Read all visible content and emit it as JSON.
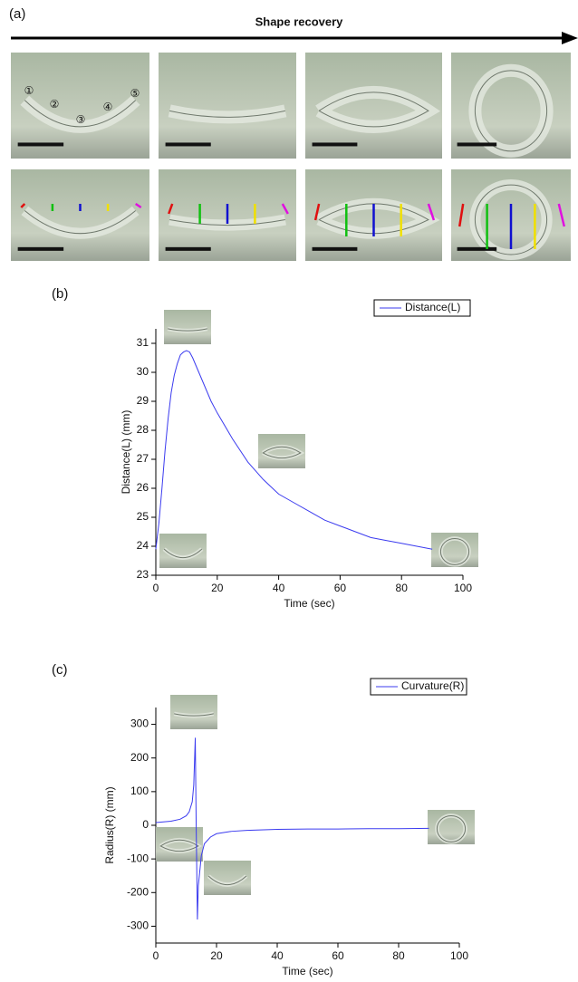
{
  "panel_a": {
    "label": "(a)",
    "arrow_label": "Shape recovery",
    "markers": [
      "①",
      "②",
      "③",
      "④",
      "⑤"
    ]
  },
  "chart_data": [
    {
      "type": "line",
      "label": "(b)",
      "xlabel": "Time (sec)",
      "ylabel": "Distance(L) (mm)",
      "x": [
        0,
        1,
        2,
        3,
        4,
        5,
        6,
        7,
        8,
        9,
        10,
        11,
        12,
        14,
        16,
        18,
        20,
        25,
        30,
        35,
        40,
        45,
        50,
        55,
        60,
        65,
        70,
        75,
        80,
        85,
        90
      ],
      "series": [
        {
          "name": "Distance(L)",
          "color": "#3b3bef",
          "values": [
            23.9,
            24.8,
            26.0,
            27.3,
            28.4,
            29.3,
            29.9,
            30.3,
            30.6,
            30.7,
            30.75,
            30.7,
            30.5,
            30.0,
            29.5,
            29.0,
            28.6,
            27.7,
            26.9,
            26.3,
            25.8,
            25.5,
            25.2,
            24.9,
            24.7,
            24.5,
            24.3,
            24.2,
            24.1,
            24.0,
            23.9
          ]
        }
      ],
      "xlim": [
        0,
        100
      ],
      "xticks": [
        0,
        20,
        40,
        60,
        80,
        100
      ],
      "ylim": [
        23,
        31.5
      ],
      "yticks": [
        23,
        24,
        25,
        26,
        27,
        28,
        29,
        30,
        31
      ],
      "legend": "top-right"
    },
    {
      "type": "line",
      "label": "(c)",
      "xlabel": "Time (sec)",
      "ylabel": "Radius(R) (mm)",
      "x": [
        0,
        5,
        8,
        10,
        11,
        12,
        12.5,
        13,
        13.3,
        13.7,
        14,
        15,
        16,
        18,
        20,
        25,
        30,
        40,
        50,
        60,
        70,
        80,
        90
      ],
      "series": [
        {
          "name": "Curvature(R)",
          "color": "#3b3bef",
          "values": [
            8,
            12,
            18,
            28,
            40,
            70,
            120,
            260,
            0,
            -280,
            -180,
            -90,
            -55,
            -35,
            -25,
            -18,
            -15,
            -12,
            -11,
            -11,
            -10,
            -10,
            -9
          ]
        }
      ],
      "xlim": [
        0,
        100
      ],
      "xticks": [
        0,
        20,
        40,
        60,
        80,
        100
      ],
      "ylim": [
        -350,
        350
      ],
      "yticks": [
        -300,
        -200,
        -100,
        0,
        100,
        200,
        300
      ],
      "legend": "top-right"
    }
  ]
}
